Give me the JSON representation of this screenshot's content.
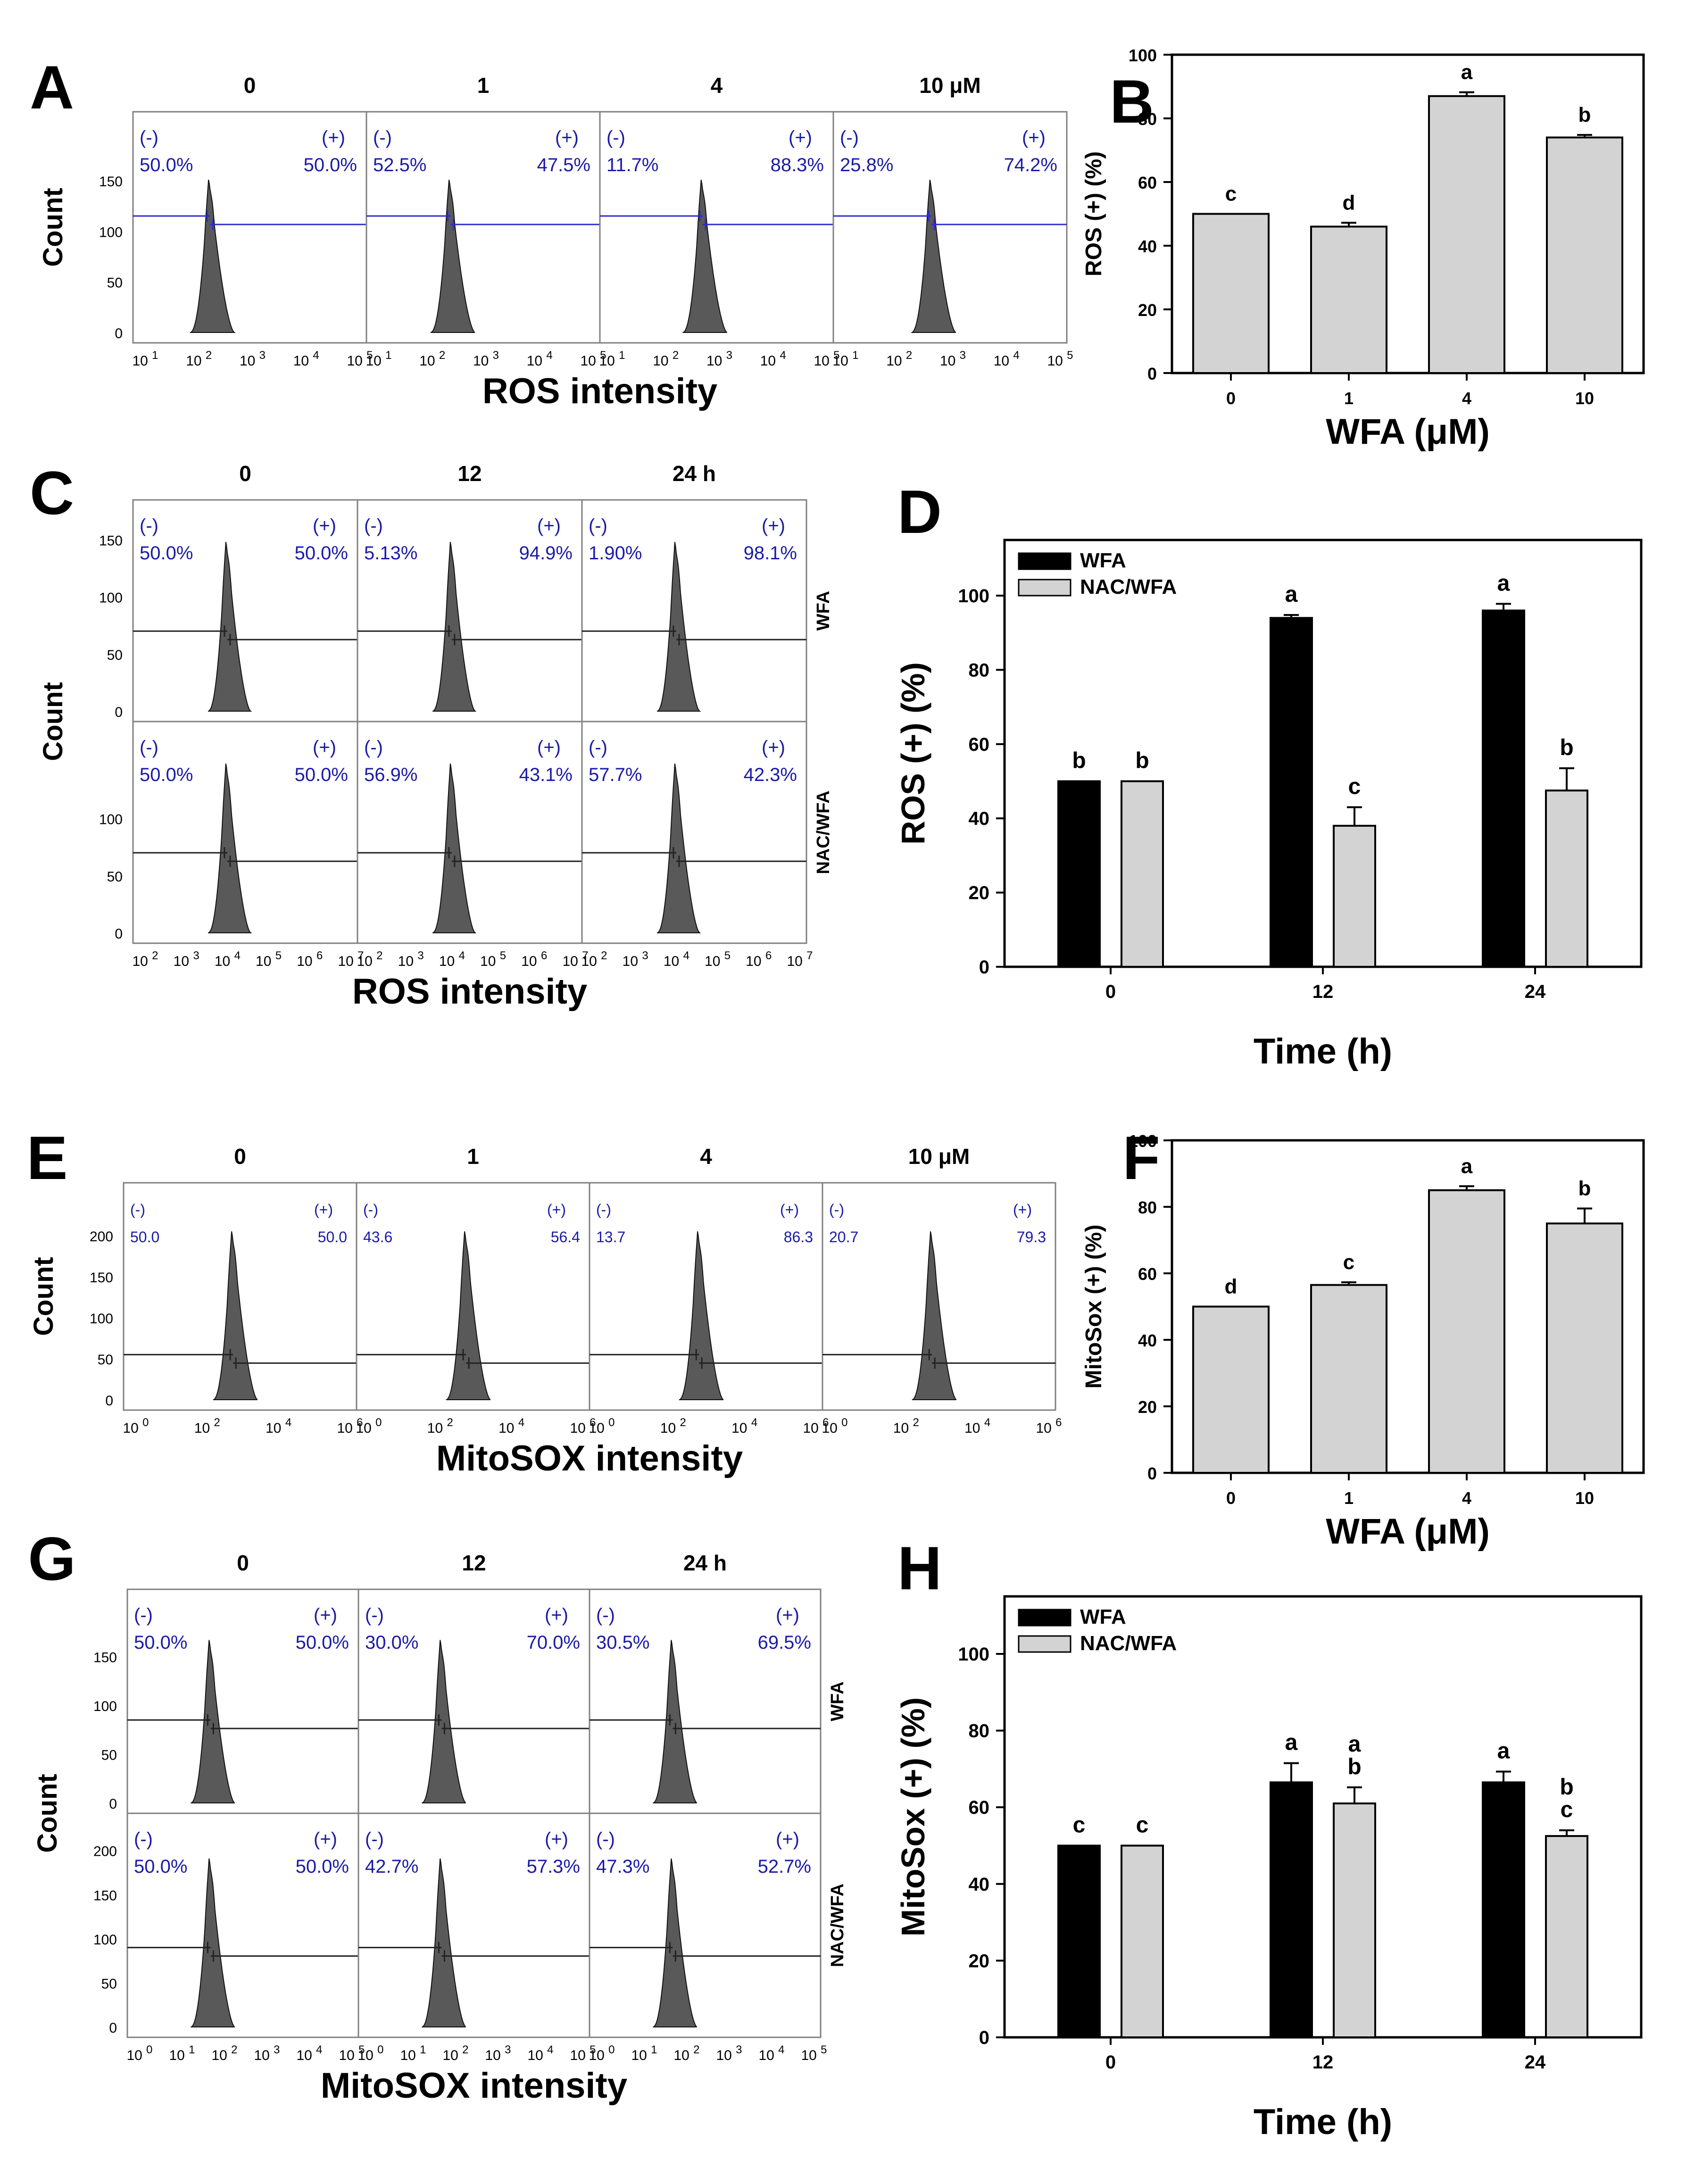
{
  "colors": {
    "blue_label": "#1a1aa8",
    "histogram_fill": "#595959",
    "bar_dark": "#000000",
    "bar_light": "#d3d3d3",
    "frame": "#808080",
    "gate_blue": "#2b2bd0",
    "gate_black": "#222222"
  },
  "panels": {
    "A": {
      "letter": "A",
      "ylabel": "Count",
      "xlabel": "ROS intensity",
      "conditions": [
        "0",
        "1",
        "4",
        "10 μM"
      ],
      "y_ticks": [
        "0",
        "50",
        "100",
        "150"
      ],
      "y_max": 190,
      "x_ticks": [
        {
          "base": "10",
          "exp": "1"
        },
        {
          "base": "10",
          "exp": "2"
        },
        {
          "base": "10",
          "exp": "3"
        },
        {
          "base": "10",
          "exp": "4"
        },
        {
          "base": "10",
          "exp": "5"
        }
      ],
      "neg_sign": "(-)",
      "pos_sign": "(+)",
      "neg_values": [
        "50.0%",
        "52.5%",
        "11.7%",
        "25.8%"
      ],
      "pos_values": [
        "50.0%",
        "47.5%",
        "88.3%",
        "74.2%"
      ],
      "gate_height": 115,
      "peak_height": 158,
      "peak_positions": [
        0.33,
        0.36,
        0.44,
        0.42
      ]
    },
    "B": {
      "letter": "B",
      "xlabel": "WFA (μM)",
      "ylabel": "ROS (+) (%)"
    },
    "C": {
      "letter": "C",
      "ylabel": "Count",
      "xlabel": "ROS intensity",
      "conditions": [
        "0",
        "12",
        "24 h"
      ],
      "row_labels": [
        "WFA",
        "NAC/WFA"
      ],
      "y_ticks_top": [
        "0",
        "50",
        "100",
        "150"
      ],
      "y_ticks_bottom": [
        "0",
        "50",
        "100"
      ],
      "y_max": 160,
      "x_ticks": [
        {
          "base": "10",
          "exp": "2"
        },
        {
          "base": "10",
          "exp": "3"
        },
        {
          "base": "10",
          "exp": "4"
        },
        {
          "base": "10",
          "exp": "5"
        },
        {
          "base": "10",
          "exp": "6"
        },
        {
          "base": "10",
          "exp": "7"
        }
      ],
      "neg_sign": "(-)",
      "pos_sign": "(+)",
      "rows": [
        {
          "neg": [
            "50.0%",
            "5.13%",
            "1.90%"
          ],
          "pos": [
            "50.0%",
            "94.9%",
            "98.1%"
          ]
        },
        {
          "neg": [
            "50.0%",
            "56.9%",
            "57.7%"
          ],
          "pos": [
            "50.0%",
            "43.1%",
            "42.3%"
          ]
        }
      ],
      "gate_height": 70,
      "peak_height": 155
    },
    "D": {
      "letter": "D",
      "xlabel": "Time (h)",
      "ylabel": "ROS (+) (%)"
    },
    "E": {
      "letter": "E",
      "ylabel": "Count",
      "xlabel": "MitoSOX intensity",
      "conditions": [
        "0",
        "1",
        "4",
        "10 μM"
      ],
      "y_ticks": [
        "0",
        "50",
        "100",
        "150",
        "200"
      ],
      "y_max": 230,
      "x_ticks": [
        {
          "base": "10",
          "exp": "0"
        },
        {
          "base": "10",
          "exp": "2"
        },
        {
          "base": "10",
          "exp": "4"
        },
        {
          "base": "10",
          "exp": "6"
        }
      ],
      "neg_sign": "(-)",
      "pos_sign": "(+)",
      "neg_values": [
        "50.0",
        "43.6",
        "13.7",
        "20.7"
      ],
      "pos_values": [
        "50.0",
        "56.4",
        "86.3",
        "79.3"
      ],
      "gate_height": 55,
      "peak_height": 215
    },
    "F": {
      "letter": "F",
      "xlabel": "WFA (μM)",
      "ylabel": "MitoSox (+) (%)"
    },
    "G": {
      "letter": "G",
      "ylabel": "Count",
      "xlabel": "MitoSOX intensity",
      "conditions": [
        "0",
        "12",
        "24 h"
      ],
      "row_labels": [
        "WFA",
        "NAC/WFA"
      ],
      "y_ticks_top": [
        "0",
        "50",
        "100",
        "150"
      ],
      "y_ticks_bottom": [
        "0",
        "50",
        "100",
        "150",
        "200"
      ],
      "y_max_top": 190,
      "y_max_bottom": 210,
      "x_ticks": [
        {
          "base": "10",
          "exp": "0"
        },
        {
          "base": "10",
          "exp": "1"
        },
        {
          "base": "10",
          "exp": "2"
        },
        {
          "base": "10",
          "exp": "3"
        },
        {
          "base": "10",
          "exp": "4"
        },
        {
          "base": "10",
          "exp": "5"
        }
      ],
      "neg_sign": "(-)",
      "pos_sign": "(+)",
      "rows": [
        {
          "neg": [
            "50.0%",
            "30.0%",
            "30.5%"
          ],
          "pos": [
            "50.0%",
            "70.0%",
            "69.5%"
          ]
        },
        {
          "neg": [
            "50.0%",
            "42.7%",
            "47.3%"
          ],
          "pos": [
            "50.0%",
            "57.3%",
            "52.7%"
          ]
        }
      ],
      "gate_height_top": 85,
      "gate_height_bottom": 90,
      "peak_height_top": 175,
      "peak_height_bottom": 200
    },
    "H": {
      "letter": "H",
      "xlabel": "Time (h)",
      "ylabel": "MitoSox (+) (%)"
    }
  },
  "chart_data": [
    {
      "id": "A",
      "type": "histogram",
      "title": "",
      "xlabel": "ROS intensity",
      "ylabel": "Count",
      "x_scale": "log",
      "xlim": [
        10,
        100000
      ],
      "ylim": [
        0,
        190
      ],
      "categories": [
        "0",
        "1",
        "4",
        "10 μM"
      ],
      "negative_percent": [
        50.0,
        52.5,
        11.7,
        25.8
      ],
      "positive_percent": [
        50.0,
        47.5,
        88.3,
        74.2
      ],
      "gate_count": 115
    },
    {
      "id": "B",
      "type": "bar",
      "title": "",
      "xlabel": "WFA (μM)",
      "ylabel": "ROS (+) (%)",
      "categories": [
        "0",
        "1",
        "4",
        "10"
      ],
      "values": [
        50,
        46,
        87,
        74
      ],
      "errors": [
        0,
        1.2,
        1.2,
        0.8
      ],
      "letters": [
        "c",
        "d",
        "a",
        "b"
      ],
      "ylim": [
        0,
        100
      ],
      "y_ticks": [
        0,
        20,
        40,
        60,
        80,
        100
      ]
    },
    {
      "id": "C",
      "type": "histogram",
      "title": "",
      "xlabel": "ROS intensity",
      "ylabel": "Count",
      "x_scale": "log",
      "xlim": [
        100,
        10000000
      ],
      "categories": [
        "0",
        "12",
        "24 h"
      ],
      "rows": [
        "WFA",
        "NAC/WFA"
      ],
      "negative_percent": [
        [
          50.0,
          5.13,
          1.9
        ],
        [
          50.0,
          56.9,
          57.7
        ]
      ],
      "positive_percent": [
        [
          50.0,
          94.9,
          98.1
        ],
        [
          50.0,
          43.1,
          42.3
        ]
      ]
    },
    {
      "id": "D",
      "type": "bar",
      "title": "",
      "xlabel": "Time (h)",
      "ylabel": "ROS (+) (%)",
      "categories": [
        "0",
        "12",
        "24"
      ],
      "series": [
        {
          "name": "WFA",
          "values": [
            50,
            94,
            96
          ],
          "errors": [
            0,
            0.8,
            1.8
          ],
          "letters": [
            "b",
            "a",
            "a"
          ]
        },
        {
          "name": "NAC/WFA",
          "values": [
            50,
            38,
            47.5
          ],
          "errors": [
            0,
            5,
            6
          ],
          "letters": [
            "b",
            "c",
            "b"
          ]
        }
      ],
      "ylim": [
        0,
        115
      ],
      "y_ticks": [
        0,
        20,
        40,
        60,
        80,
        100
      ],
      "legend": "top-left"
    },
    {
      "id": "E",
      "type": "histogram",
      "title": "",
      "xlabel": "MitoSOX intensity",
      "ylabel": "Count",
      "x_scale": "log",
      "xlim": [
        1,
        10000000
      ],
      "ylim": [
        0,
        230
      ],
      "categories": [
        "0",
        "1",
        "4",
        "10 μM"
      ],
      "negative_percent": [
        50.0,
        43.6,
        13.7,
        20.7
      ],
      "positive_percent": [
        50.0,
        56.4,
        86.3,
        79.3
      ]
    },
    {
      "id": "F",
      "type": "bar",
      "title": "",
      "xlabel": "WFA (μM)",
      "ylabel": "MitoSox (+) (%)",
      "categories": [
        "0",
        "1",
        "4",
        "10"
      ],
      "values": [
        50,
        56.5,
        85,
        75
      ],
      "errors": [
        0,
        0.8,
        1.2,
        4.5
      ],
      "letters": [
        "d",
        "c",
        "a",
        "b"
      ],
      "ylim": [
        0,
        100
      ],
      "y_ticks": [
        0,
        20,
        40,
        60,
        80,
        100
      ]
    },
    {
      "id": "G",
      "type": "histogram",
      "title": "",
      "xlabel": "MitoSOX intensity",
      "ylabel": "Count",
      "x_scale": "log",
      "xlim": [
        1,
        100000
      ],
      "categories": [
        "0",
        "12",
        "24 h"
      ],
      "rows": [
        "WFA",
        "NAC/WFA"
      ],
      "negative_percent": [
        [
          50.0,
          30.0,
          30.5
        ],
        [
          50.0,
          42.7,
          47.3
        ]
      ],
      "positive_percent": [
        [
          50.0,
          70.0,
          69.5
        ],
        [
          50.0,
          57.3,
          52.7
        ]
      ]
    },
    {
      "id": "H",
      "type": "bar",
      "title": "",
      "xlabel": "Time (h)",
      "ylabel": "MitoSox (+) (%)",
      "categories": [
        "0",
        "12",
        "24"
      ],
      "series": [
        {
          "name": "WFA",
          "values": [
            50,
            66.5,
            66.5
          ],
          "errors": [
            0,
            5,
            2.8
          ],
          "letters": [
            "c",
            "a",
            "a"
          ]
        },
        {
          "name": "NAC/WFA",
          "values": [
            50,
            61,
            52.5
          ],
          "errors": [
            0,
            4.2,
            1.5
          ],
          "letters": [
            "c",
            "a\nb",
            "b\nc"
          ]
        }
      ],
      "ylim": [
        0,
        115
      ],
      "y_ticks": [
        0,
        20,
        40,
        60,
        80,
        100
      ],
      "legend": "top-left"
    }
  ]
}
